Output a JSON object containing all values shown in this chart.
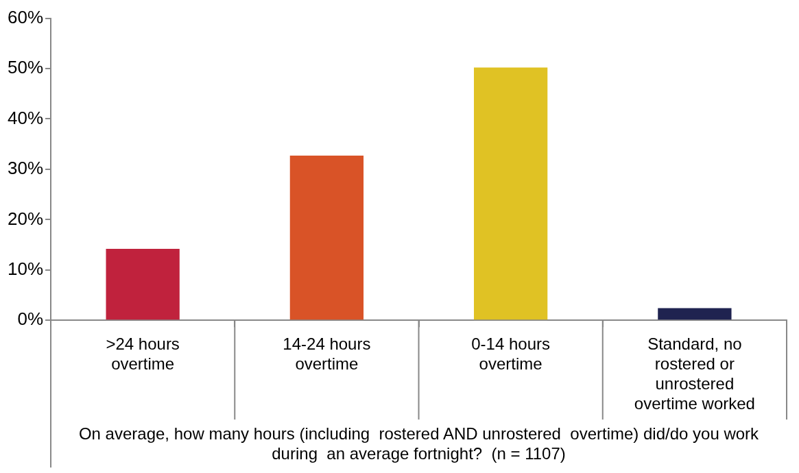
{
  "chart_data": {
    "type": "bar",
    "xlabel": "On average, how many hours (including  rostered AND unrostered  overtime) did/do you work during  an average fortnight?  (n = 1107)",
    "categories": [
      ">24 hours overtime",
      "14-24 hours overtime",
      "0-14 hours overtime",
      "Standard, no rostered or unrostered overtime worked"
    ],
    "values": [
      14.2,
      32.7,
      50.2,
      2.4
    ],
    "colors": [
      "#c0223d",
      "#d95327",
      "#e0c224",
      "#1f2350"
    ],
    "ylim": [
      0,
      60
    ],
    "yticks": [
      {
        "value": 0,
        "label": "0%"
      },
      {
        "value": 10,
        "label": "10%"
      },
      {
        "value": 20,
        "label": "20%"
      },
      {
        "value": 30,
        "label": "30%"
      },
      {
        "value": 40,
        "label": "40%"
      },
      {
        "value": 50,
        "label": "50%"
      },
      {
        "value": 60,
        "label": "60%"
      }
    ],
    "grid": false,
    "legend": false
  }
}
